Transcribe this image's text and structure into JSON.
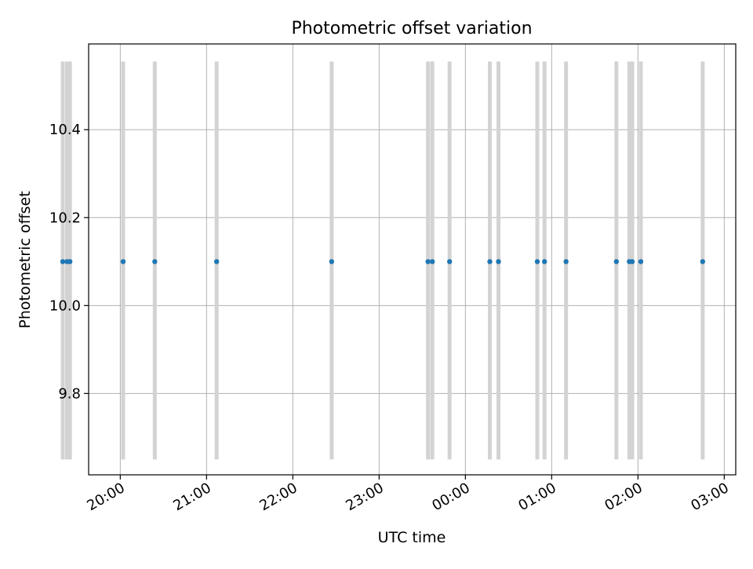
{
  "chart_data": {
    "type": "scatter",
    "title": "Photometric offset variation",
    "xlabel": "UTC time",
    "ylabel": "Photometric offset",
    "xlim": [
      "19:38",
      "03:08"
    ],
    "ylim": [
      9.615,
      10.595
    ],
    "x_ticks": [
      "20:00",
      "21:00",
      "22:00",
      "23:00",
      "00:00",
      "01:00",
      "02:00",
      "03:00"
    ],
    "y_ticks": [
      "9.8",
      "10.0",
      "10.2",
      "10.4"
    ],
    "grid": true,
    "legend": "none",
    "points": {
      "color": "#1f77b4",
      "x": [
        "19:20",
        "19:23",
        "19:25",
        "20:02",
        "20:24",
        "21:07",
        "22:27",
        "23:34",
        "23:37",
        "23:49",
        "00:17",
        "00:23",
        "00:50",
        "00:55",
        "01:10",
        "01:45",
        "01:54",
        "01:56",
        "02:02",
        "02:45"
      ],
      "y": [
        10.1,
        10.1,
        10.1,
        10.1,
        10.1,
        10.1,
        10.1,
        10.1,
        10.1,
        10.1,
        10.1,
        10.1,
        10.1,
        10.1,
        10.1,
        10.1,
        10.1,
        10.1,
        10.1,
        10.1
      ]
    },
    "spans": {
      "color": "#d3d3d3",
      "y_range": [
        9.65,
        10.555
      ],
      "x": [
        "19:20",
        "19:23",
        "19:25",
        "20:02",
        "20:24",
        "21:07",
        "22:27",
        "23:34",
        "23:37",
        "23:49",
        "00:17",
        "00:23",
        "00:50",
        "00:55",
        "01:10",
        "01:45",
        "01:54",
        "01:56",
        "02:02",
        "02:45"
      ]
    }
  }
}
